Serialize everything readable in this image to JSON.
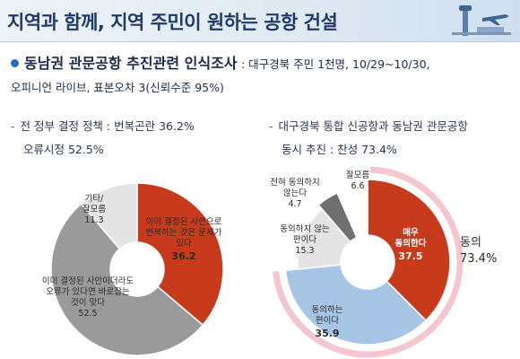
{
  "header": {
    "title": "지역과 함께, 지역 주민이 원하는 공항 건설",
    "icon": "airport-tower-plane-icon"
  },
  "survey": {
    "title": "동남권 관문공항 추진관련 인식조사",
    "detail_line1": ": 대구경북 주민 1천명, 10/29~10/30,",
    "detail_line2": "오피니언 라이브, 표본오차  3(신뢰수준 95%)"
  },
  "left_summary": {
    "line1_prefix": "전 정부 결정 정책 : 번복곤란 36.2%",
    "line2": "오류시정 52.5%"
  },
  "right_summary": {
    "line1": "대구경북 통합 신공항과 동남권 관문공항",
    "line2": "동시 추진 : 찬성 73.4%"
  },
  "colors": {
    "red": "#c83a1c",
    "gray": "#9a9a9a",
    "light_gray": "#e4e4e4",
    "blue": "#a7c6e6",
    "dark_gray": "#6f6f6f",
    "pink_arrow": "#f4c6cf"
  },
  "chart_data": [
    {
      "type": "pie",
      "categories": [
        "이미 결정된 사안으로 번복하는 것은 문제가 있다",
        "이미 결정된 사안이더라도 오류가 있다면 바로잡는 것이 맞다",
        "기타/잘모름"
      ],
      "values": [
        36.2,
        52.5,
        11.3
      ],
      "labels": [
        {
          "line1": "이미 결정된 사안으로",
          "line2": "번복하는 것은 문제가",
          "line3": "있다",
          "value": "36.2"
        },
        {
          "line1": "이미 결정된 사안이더라도",
          "line2": "오류가 있다면 바로잡는",
          "line3": "것이 맞다",
          "value": "52.5"
        },
        {
          "line1": "기타/",
          "line2": "잘모름",
          "value": "11.3"
        }
      ]
    },
    {
      "type": "pie",
      "categories": [
        "매우 동의한다",
        "동의하는 편이다",
        "동의하지 않는 편이다",
        "전혀 동의하지 않는다",
        "잘모름"
      ],
      "values": [
        37.5,
        35.9,
        15.3,
        4.7,
        6.6
      ],
      "labels": [
        {
          "line1": "매우",
          "line2": "동의한다",
          "value": "37.5"
        },
        {
          "line1": "동의하는",
          "line2": "편이다",
          "value": "35.9"
        },
        {
          "line1": "동의하지 않는",
          "line2": "편이다",
          "value": "15.3"
        },
        {
          "line1": "전혀 동의하지",
          "line2": "않는다",
          "value": "4.7"
        },
        {
          "line1": "잘모름",
          "value": "6.6"
        }
      ],
      "annotation": {
        "label": "동의",
        "value": "73.4%"
      }
    }
  ]
}
